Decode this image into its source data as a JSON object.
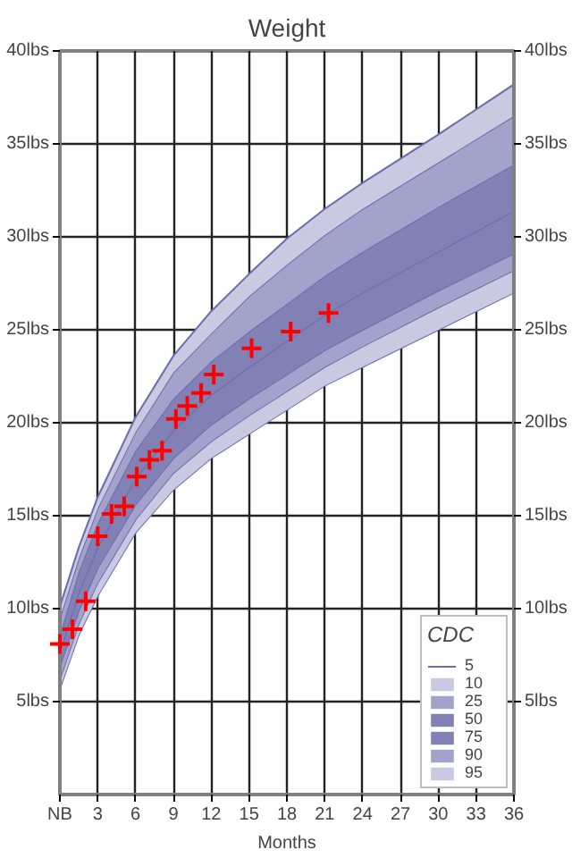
{
  "chart_data": {
    "type": "line",
    "title": "Weight",
    "xlabel": "Months",
    "legend_title": "CDC",
    "legend": "bottom right",
    "grid": true,
    "xlim": [
      0,
      36
    ],
    "xticks": [
      {
        "value": 0,
        "label": "NB"
      },
      3,
      6,
      9,
      12,
      15,
      18,
      21,
      24,
      27,
      30,
      33,
      36
    ],
    "ylim": [
      0,
      40
    ],
    "yticks": [
      {
        "value": 5,
        "label": "5lbs"
      },
      {
        "value": 10,
        "label": "10lbs"
      },
      {
        "value": 15,
        "label": "15lbs"
      },
      {
        "value": 20,
        "label": "20lbs"
      },
      {
        "value": 25,
        "label": "25lbs"
      },
      {
        "value": 30,
        "label": "30lbs"
      },
      {
        "value": 35,
        "label": "35lbs"
      },
      {
        "value": 40,
        "label": "40lbs"
      }
    ],
    "y2lim": [
      0,
      40
    ],
    "y2ticks": [
      {
        "value": 5,
        "label": "5lbs"
      },
      {
        "value": 10,
        "label": "10lbs"
      },
      {
        "value": 15,
        "label": "15lbs"
      },
      {
        "value": 20,
        "label": "20lbs"
      },
      {
        "value": 25,
        "label": "25lbs"
      },
      {
        "value": 30,
        "label": "30lbs"
      },
      {
        "value": 35,
        "label": "35lbs"
      },
      {
        "value": 40,
        "label": "40lbs"
      }
    ],
    "series": [
      {
        "name": "5",
        "color": "#6b6bb0",
        "x": [
          0,
          1.5,
          3,
          6,
          9,
          12,
          15,
          18,
          21,
          24,
          30,
          36
        ],
        "values": [
          5.7,
          8.6,
          10.7,
          14.1,
          16.4,
          18.1,
          19.4,
          20.7,
          22.0,
          23.0,
          25.0,
          27.0
        ]
      },
      {
        "name": "10",
        "type": "area",
        "color": "#c9c9e1",
        "x": [
          0,
          1.5,
          3,
          6,
          9,
          12,
          15,
          18,
          21,
          24,
          30,
          36
        ],
        "values": [
          6.2,
          9.2,
          11.4,
          14.8,
          17.3,
          19.0,
          20.4,
          21.7,
          23.0,
          24.1,
          26.2,
          28.2
        ]
      },
      {
        "name": "25",
        "type": "area",
        "color": "#a2a2ca",
        "x": [
          0,
          1.5,
          3,
          6,
          9,
          12,
          15,
          18,
          21,
          24,
          30,
          36
        ],
        "values": [
          6.9,
          9.9,
          12.2,
          15.6,
          18.1,
          19.9,
          21.3,
          22.6,
          23.9,
          25.0,
          27.1,
          29.1
        ]
      },
      {
        "name": "50",
        "type": "area",
        "color": "#8181b5",
        "x": [
          0,
          1.5,
          3,
          6,
          9,
          12,
          15,
          18,
          21,
          24,
          30,
          36
        ],
        "values": [
          7.7,
          10.9,
          13.3,
          17.0,
          19.6,
          21.5,
          23.0,
          24.4,
          25.8,
          27.0,
          29.2,
          31.4
        ]
      },
      {
        "name": "75",
        "type": "area",
        "color": "#8181b5",
        "x": [
          0,
          1.5,
          3,
          6,
          9,
          12,
          15,
          18,
          21,
          24,
          30,
          36
        ],
        "values": [
          8.6,
          12.0,
          14.6,
          18.5,
          21.3,
          23.3,
          24.9,
          26.4,
          27.9,
          29.2,
          31.6,
          33.9
        ]
      },
      {
        "name": "90",
        "type": "area",
        "color": "#a2a2ca",
        "x": [
          0,
          1.5,
          3,
          6,
          9,
          12,
          15,
          18,
          21,
          24,
          30,
          36
        ],
        "values": [
          9.5,
          12.7,
          15.4,
          19.5,
          22.7,
          24.8,
          26.8,
          28.5,
          30.1,
          31.5,
          34.0,
          36.5
        ]
      },
      {
        "name": "95",
        "type": "area",
        "color": "#c9c9e1",
        "x": [
          0,
          1.5,
          3,
          6,
          9,
          12,
          15,
          18,
          21,
          24,
          30,
          36
        ],
        "values": [
          10.1,
          13.3,
          16.0,
          20.3,
          23.6,
          26.0,
          28.0,
          29.9,
          31.5,
          32.9,
          35.5,
          38.2
        ]
      },
      {
        "type": "scatter",
        "marker": "cross",
        "color": "#ff0000",
        "x": [
          0,
          1.0,
          2.05,
          3.0,
          4.1,
          5.1,
          6.1,
          7.1,
          8.1,
          9.2,
          10.1,
          11.2,
          12.2,
          15.2,
          18.3,
          21.3
        ],
        "values": [
          8.1,
          8.9,
          10.4,
          13.9,
          15.1,
          15.5,
          17.1,
          18.0,
          18.5,
          20.2,
          20.9,
          21.6,
          22.6,
          24.0,
          24.9,
          25.9
        ]
      }
    ]
  }
}
